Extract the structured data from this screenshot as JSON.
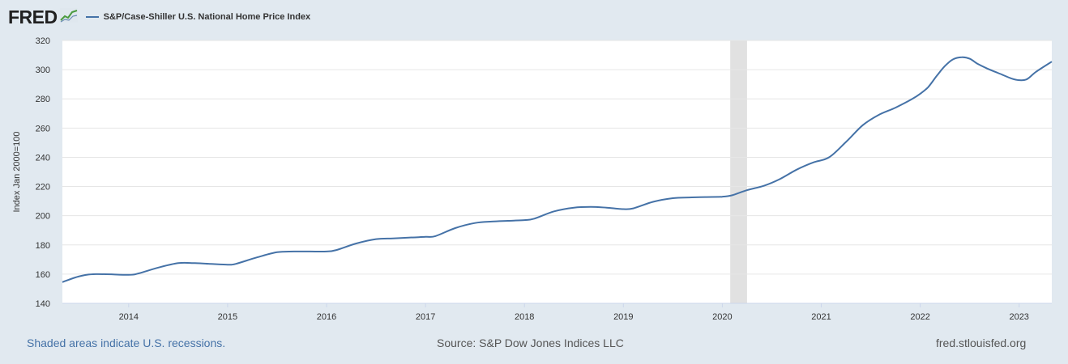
{
  "header": {
    "logo_text": "FRED",
    "legend_label": "S&P/Case-Shiller U.S. National Home Price Index"
  },
  "colors": {
    "series": "#4572a7",
    "recession": "#e1e1e1",
    "grid": "#e6e6e6",
    "plot_bg": "#ffffff",
    "page_bg": "#e1e9f0"
  },
  "chart_data": {
    "type": "line",
    "title": "S&P/Case-Shiller U.S. National Home Price Index",
    "ylabel": "Index Jan 2000=100",
    "xlabel": "",
    "ylim": [
      140,
      320
    ],
    "yticks": [
      140,
      160,
      180,
      200,
      220,
      240,
      260,
      280,
      300,
      320
    ],
    "xlim": [
      2013.33,
      2023.33
    ],
    "xticks": [
      {
        "value": 2014,
        "label": "2014"
      },
      {
        "value": 2015,
        "label": "2015"
      },
      {
        "value": 2016,
        "label": "2016"
      },
      {
        "value": 2017,
        "label": "2017"
      },
      {
        "value": 2018,
        "label": "2018"
      },
      {
        "value": 2019,
        "label": "2019"
      },
      {
        "value": 2020,
        "label": "2020"
      },
      {
        "value": 2021,
        "label": "2021"
      },
      {
        "value": 2022,
        "label": "2022"
      },
      {
        "value": 2023,
        "label": "2023"
      }
    ],
    "grid": true,
    "recessions": [
      [
        2020.08,
        2020.25
      ]
    ],
    "series": [
      {
        "name": "S&P/Case-Shiller U.S. National Home Price Index",
        "x": [
          2013.33,
          2013.5,
          2013.67,
          2014.0,
          2014.1,
          2014.3,
          2014.5,
          2014.67,
          2014.83,
          2015.0,
          2015.08,
          2015.3,
          2015.5,
          2015.67,
          2015.83,
          2016.0,
          2016.1,
          2016.3,
          2016.5,
          2016.67,
          2016.83,
          2017.0,
          2017.1,
          2017.3,
          2017.5,
          2017.67,
          2017.83,
          2018.0,
          2018.1,
          2018.3,
          2018.5,
          2018.67,
          2018.83,
          2019.0,
          2019.1,
          2019.3,
          2019.5,
          2019.67,
          2019.83,
          2020.0,
          2020.1,
          2020.25,
          2020.42,
          2020.58,
          2020.75,
          2020.92,
          2021.08,
          2021.25,
          2021.42,
          2021.58,
          2021.75,
          2021.92,
          2022.0,
          2022.08,
          2022.17,
          2022.25,
          2022.33,
          2022.42,
          2022.5,
          2022.58,
          2022.67,
          2022.83,
          2022.92,
          2023.0,
          2023.08,
          2023.17,
          2023.33
        ],
        "values": [
          154.5,
          158.5,
          160.0,
          159.5,
          160.5,
          164.5,
          167.5,
          167.5,
          167.0,
          166.5,
          167.0,
          171.5,
          175.0,
          175.5,
          175.5,
          175.5,
          176.5,
          181.0,
          184.0,
          184.5,
          185.0,
          185.5,
          186.0,
          191.5,
          195.0,
          196.0,
          196.5,
          197.0,
          198.0,
          203.0,
          205.5,
          206.0,
          205.5,
          204.5,
          205.0,
          209.5,
          212.0,
          212.5,
          212.8,
          213.0,
          214.0,
          217.5,
          220.5,
          225.0,
          231.5,
          236.5,
          240.0,
          250.5,
          262.0,
          269.0,
          274.0,
          280.0,
          283.5,
          288.0,
          296.0,
          302.5,
          307.0,
          308.5,
          307.5,
          304.0,
          301.0,
          296.5,
          294.0,
          292.8,
          293.5,
          298.5,
          305.5
        ]
      }
    ]
  },
  "footer": {
    "recession_note": "Shaded areas indicate U.S. recessions.",
    "source": "Source: S&P Dow Jones Indices LLC",
    "site": "fred.stlouisfed.org"
  }
}
